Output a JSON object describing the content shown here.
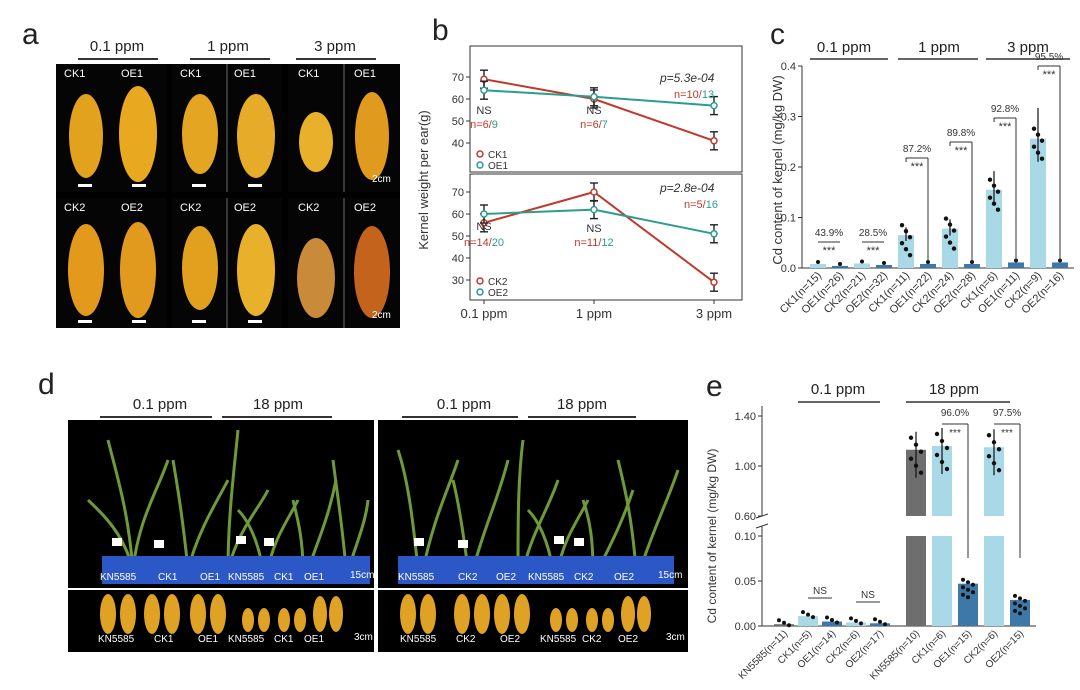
{
  "panels": {
    "a": {
      "letter": "a",
      "groups": [
        "0.1 ppm",
        "1 ppm",
        "3 ppm"
      ],
      "labels_top": [
        "CK1",
        "OE1",
        "CK1",
        "OE1",
        "CK1",
        "OE1"
      ],
      "labels_bottom": [
        "CK2",
        "OE2",
        "CK2",
        "OE2",
        "CK2",
        "OE2"
      ],
      "scale": "2cm"
    },
    "b": {
      "letter": "b",
      "ylabel": "Kernel weight per ear(g)",
      "top": {
        "p": "p=5.3e-04",
        "n_last_ck": "n=10/",
        "n_last_oe": "13",
        "ns1": "NS",
        "n1_ck": "n=6/",
        "n1_oe": "9",
        "ns2": "NS",
        "n2_ck": "n=6/",
        "n2_oe": "7",
        "legend_ck": "CK1",
        "legend_oe": "OE1"
      },
      "bottom": {
        "p": "p=2.8e-04",
        "n_last_ck": "n=5/",
        "n_last_oe": "16",
        "ns1": "NS",
        "n1_ck": "n=14/",
        "n1_oe": "20",
        "ns2": "NS",
        "n2_ck": "n=11/",
        "n2_oe": "12",
        "legend_ck": "CK2",
        "legend_oe": "OE2"
      },
      "xticks": [
        "0.1 ppm",
        "1 ppm",
        "3 ppm"
      ]
    },
    "c": {
      "letter": "c",
      "groups": [
        "0.1 ppm",
        "1 ppm",
        "3 ppm"
      ],
      "ylabel": "Cd content of kernel (mg/kg DW)",
      "yticks": [
        "0.0",
        "0.1",
        "0.2",
        "0.3",
        "0.4"
      ],
      "percents": [
        "43.9%",
        "28.5%",
        "87.2%",
        "89.8%",
        "92.8%",
        "95.5%"
      ],
      "stars": "***",
      "xlabels": [
        "CK1(n=15)",
        "OE1(n=26)",
        "CK2(n=21)",
        "OE2(n=32)",
        "CK1(n=11)",
        "OE1(n=22)",
        "CK2(n=24)",
        "OE2(n=28)",
        "CK1(n=6)",
        "OE1(n=11)",
        "CK2(n=9)",
        "OE2(n=16)"
      ]
    },
    "d": {
      "letter": "d",
      "groups": [
        "0.1 ppm",
        "18 ppm",
        "0.1 ppm",
        "18 ppm"
      ],
      "left_plants": [
        "KN5585",
        "CK1",
        "OE1",
        "KN5585",
        "CK1",
        "OE1"
      ],
      "right_plants": [
        "KN5585",
        "CK2",
        "OE2",
        "KN5585",
        "CK2",
        "OE2"
      ],
      "scale_plants": "15cm",
      "scale_ears": "3cm"
    },
    "e": {
      "letter": "e",
      "groups": [
        "0.1 ppm",
        "18 ppm"
      ],
      "ylabel": "Cd content of kernel (mg/kg DW)",
      "yticks_upper": [
        "0.60",
        "1.00",
        "1.40"
      ],
      "yticks_lower": [
        "0.00",
        "0.05",
        "0.10"
      ],
      "ns": "NS",
      "percents": [
        "96.0%",
        "97.5%"
      ],
      "stars": "***",
      "xlabels": [
        "KN5585(n=11)",
        "CK1(n=5)",
        "OE1(n=14)",
        "CK2(n=6)",
        "OE2(n=17)",
        "KN5585(n=10)",
        "CK1(n=6)",
        "OE1(n=15)",
        "CK2(n=6)",
        "OE2(n=15)"
      ]
    }
  },
  "chart_data": [
    {
      "type": "line",
      "title": "",
      "ylabel": "Kernel weight per ear(g)",
      "x": [
        "0.1 ppm",
        "1 ppm",
        "3 ppm"
      ],
      "ylim": [
        35,
        75
      ],
      "series": [
        {
          "name": "CK1",
          "values": [
            69,
            60,
            41
          ]
        },
        {
          "name": "OE1",
          "values": [
            64,
            61,
            57
          ]
        }
      ]
    },
    {
      "type": "line",
      "title": "",
      "ylabel": "Kernel weight per ear(g)",
      "x": [
        "0.1 ppm",
        "1 ppm",
        "3 ppm"
      ],
      "ylim": [
        25,
        75
      ],
      "series": [
        {
          "name": "CK2",
          "values": [
            56,
            70,
            29
          ]
        },
        {
          "name": "OE2",
          "values": [
            60,
            62,
            51
          ]
        }
      ]
    },
    {
      "type": "bar",
      "ylabel": "Cd content of kernel (mg/kg DW)",
      "ylim": [
        0,
        0.4
      ],
      "categories": [
        "CK1(n=15)",
        "OE1(n=26)",
        "CK2(n=21)",
        "OE2(n=32)",
        "CK1(n=11)",
        "OE1(n=22)",
        "CK2(n=24)",
        "OE2(n=28)",
        "CK1(n=6)",
        "OE1(n=11)",
        "CK2(n=9)",
        "OE2(n=16)"
      ],
      "values": [
        0.008,
        0.004,
        0.009,
        0.006,
        0.065,
        0.008,
        0.078,
        0.008,
        0.155,
        0.011,
        0.256,
        0.011
      ]
    },
    {
      "type": "bar",
      "ylabel": "Cd content of kernel (mg/kg DW)",
      "categories": [
        "KN5585(n=11)",
        "CK1(n=5)",
        "OE1(n=14)",
        "CK2(n=6)",
        "OE2(n=17)",
        "KN5585(n=10)",
        "CK1(n=6)",
        "OE1(n=15)",
        "CK2(n=6)",
        "OE2(n=15)"
      ],
      "values": [
        0.002,
        0.011,
        0.005,
        0.004,
        0.003,
        1.13,
        1.16,
        0.047,
        1.15,
        0.029
      ]
    }
  ],
  "colors": {
    "ck_line": "#c0392b",
    "oe_line": "#2a9d8f",
    "bar_light": "#a9d8e6",
    "bar_dark": "#3e78a8",
    "bar_gray": "#6e6e6e"
  }
}
